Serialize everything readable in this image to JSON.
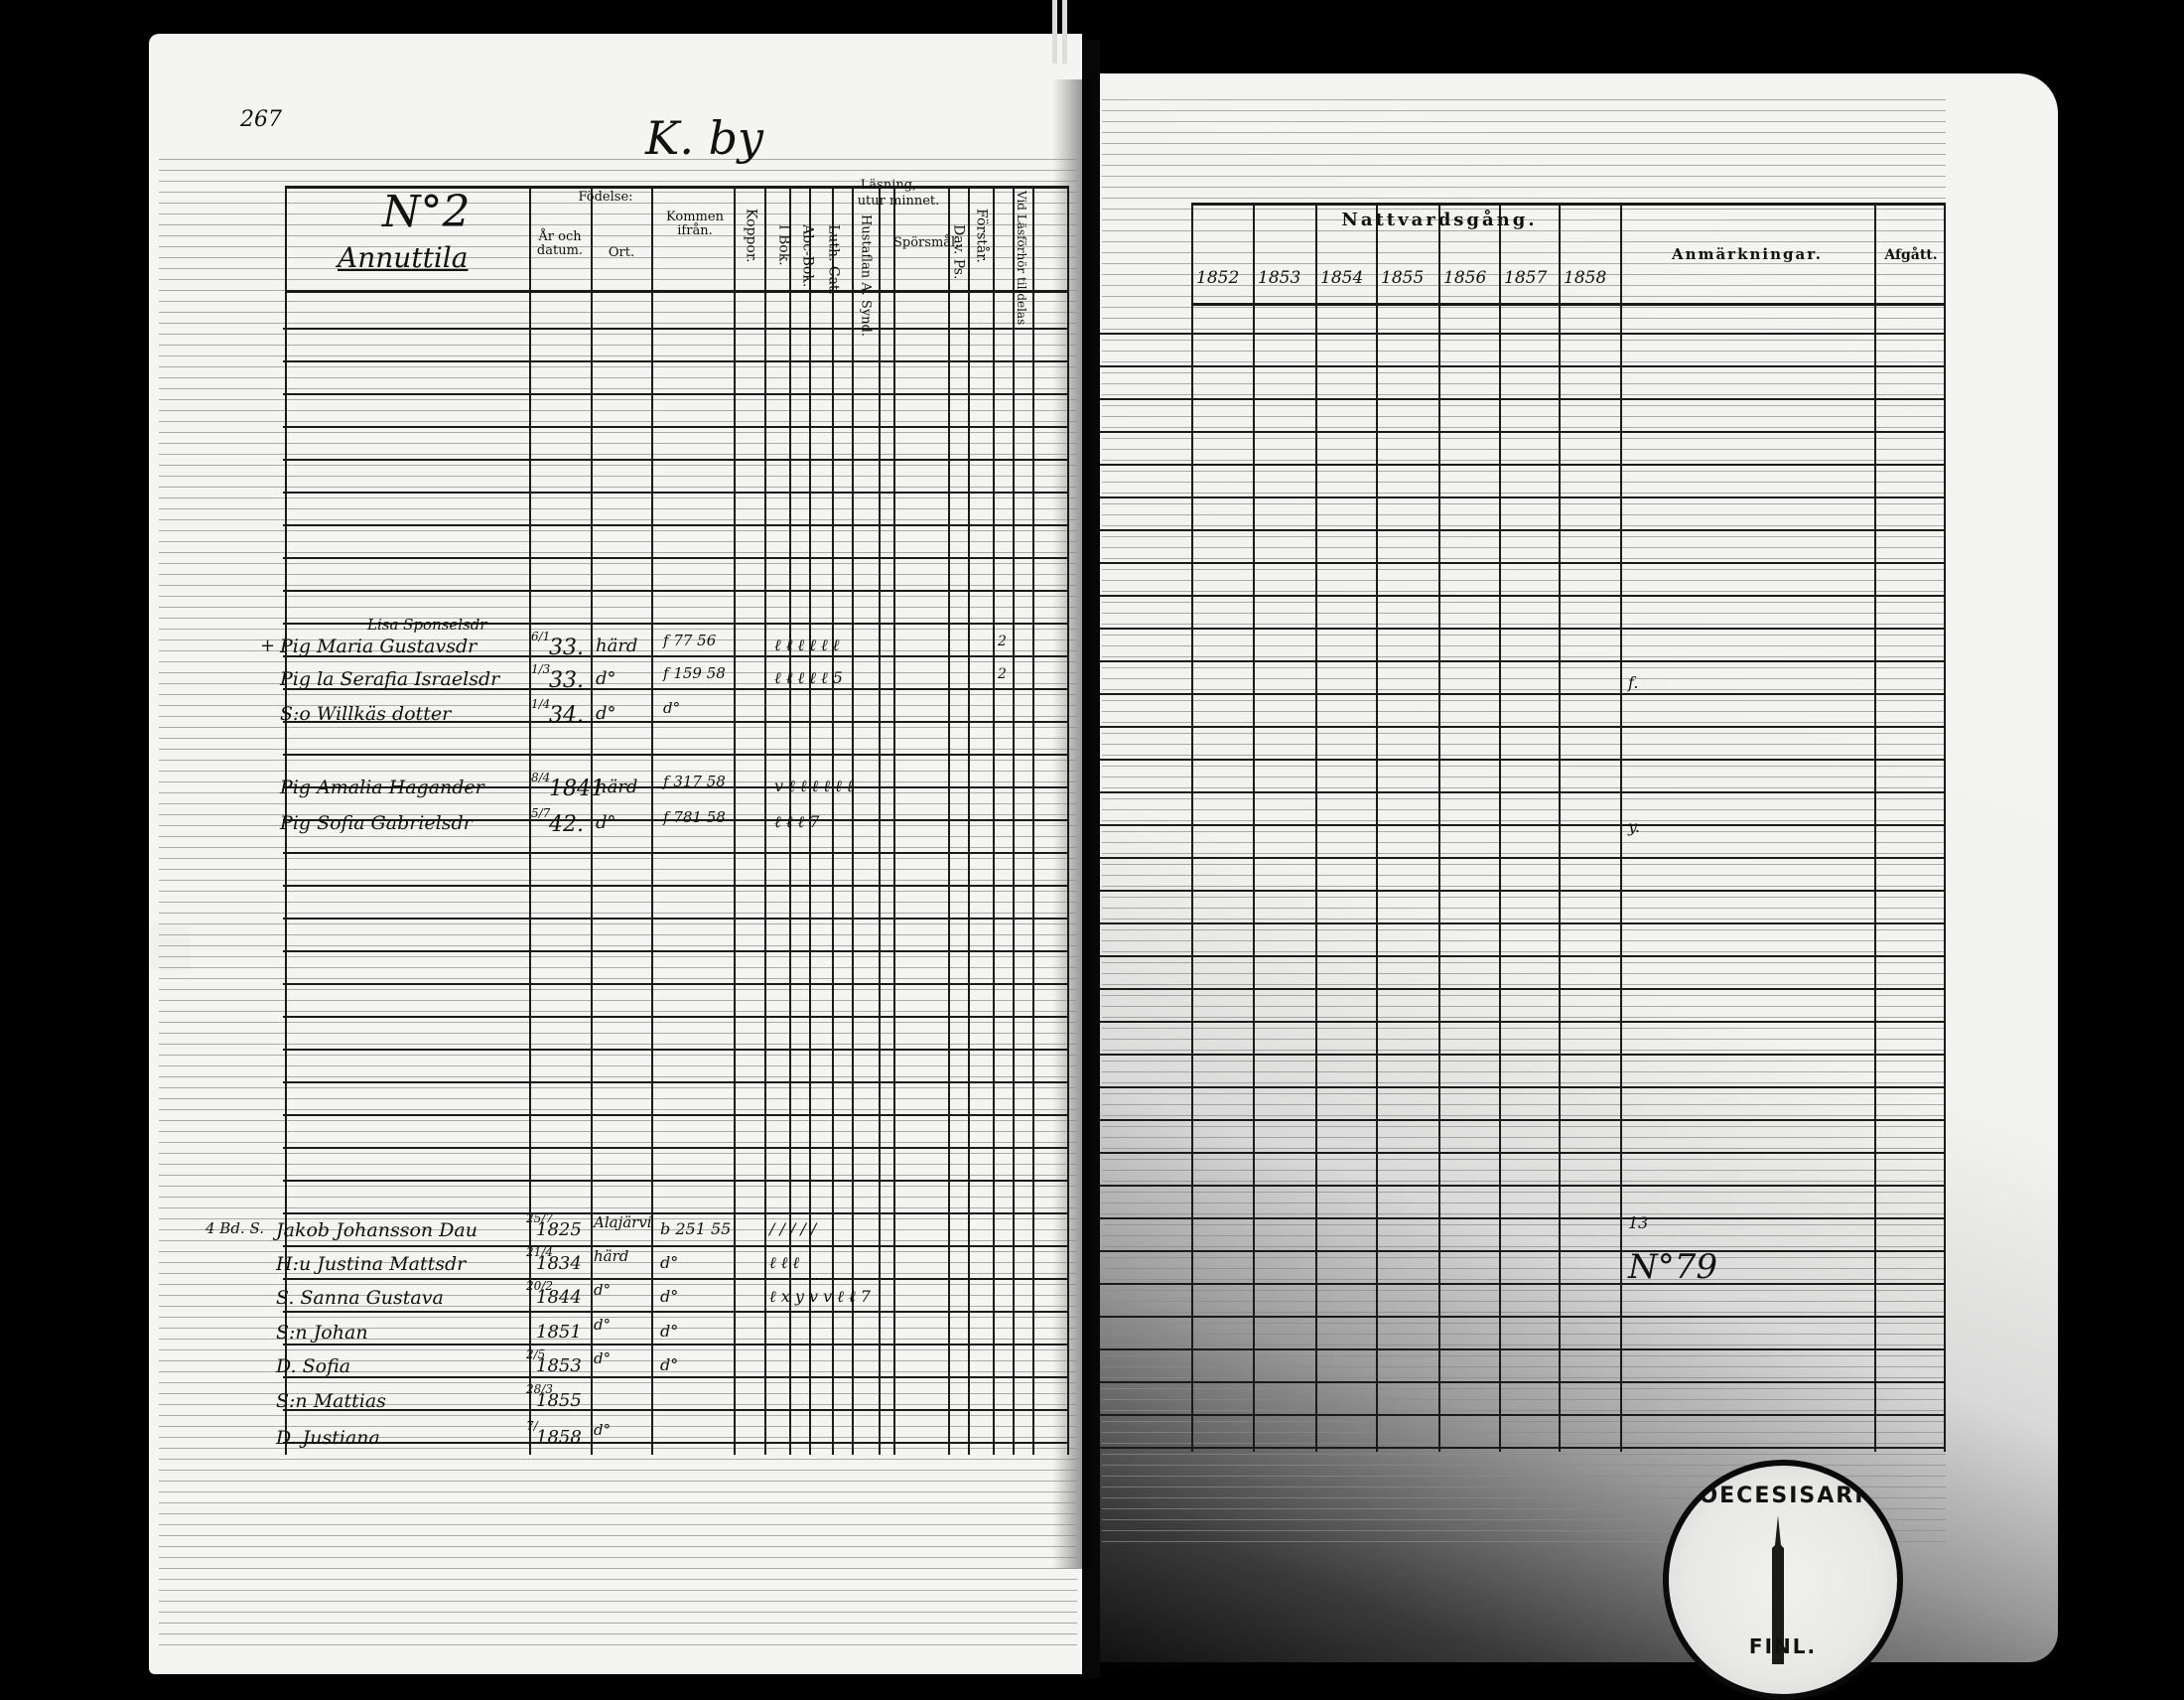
{
  "page_number": "267",
  "village": "K. by",
  "section_no": "N°2",
  "farm_name": "Annuttila",
  "header": {
    "fodelse": "Födelse:",
    "ar_och_datum": "År och datum.",
    "ort": "Ort.",
    "kommen_ifran": "Kommen ifrån.",
    "koppor": "Koppor.",
    "lasning": "Läsning,",
    "utur_minnet": "utur minnet.",
    "i_bok": "I Bok.",
    "abc_bok": "Abc-Bok.",
    "luth_cat": "Luth. Cat.",
    "hustaflan": "Hustaflan A. Synd.",
    "sporsmal": "Spörsmål.",
    "dav_ps": "Dav. Ps.",
    "forstar": "Förstår.",
    "vid_lastofoer": "Vid Läsförhör tilldelas",
    "nattvardsgang": "Nattvardsgång.",
    "years": [
      "1852",
      "1853",
      "1854",
      "1855",
      "1856",
      "1857",
      "1858"
    ],
    "anmarkningar": "Anmärkningar.",
    "afgatt": "Afgått."
  },
  "entries_top": [
    {
      "prefix": "+",
      "name": "Pig Maria Gustavsdr",
      "above": "Lisa Sponselsdr",
      "year": "33.",
      "month": "6/1",
      "place": "härd",
      "from": "f 77 56",
      "marks": "ℓ ℓ ℓ ℓ ℓ ℓ",
      "right": "2"
    },
    {
      "prefix": "",
      "name": "Pig la Serafia Israelsdr",
      "above": "",
      "year": "33.",
      "month": "1/3",
      "place": "d°",
      "from": "f 159 58",
      "marks": "ℓ ℓ ℓ ℓ ℓ 5",
      "right": "2",
      "note": "f."
    },
    {
      "prefix": "",
      "name": "S:o Willkäs dotter",
      "above": "",
      "year": "34.",
      "month": "1/4",
      "place": "d°",
      "from": "d°",
      "marks": "",
      "right": ""
    },
    {
      "prefix": "",
      "name": "Pig Amalia Hagander",
      "above": "",
      "year": "1841",
      "month": "8/4",
      "place": "härd",
      "from": "f 317 58",
      "marks": "v ℓ ℓ ℓ ℓ ℓ ℓ",
      "right": ""
    },
    {
      "prefix": "",
      "name": "Pig Sofia Gabrielsdr",
      "above": "",
      "year": "42.",
      "month": "5/7",
      "place": "d°",
      "from": "f 781 58",
      "marks": "ℓ ℓ ℓ 7",
      "right": "",
      "note": "y."
    }
  ],
  "entries_bottom": [
    {
      "prefix": "4 Bd. S.",
      "name": "Jakob Johansson Dau",
      "year": "1825",
      "month": "25/7",
      "place": "Alajärvi",
      "from": "b 251 55",
      "marks": "/ / / / /",
      "note": "13"
    },
    {
      "prefix": "",
      "name": "H:u Justina Mattsdr",
      "year": "1834",
      "month": "21/4",
      "place": "härd",
      "from": "d°",
      "marks": "ℓ ℓ ℓ",
      "note": "N°79"
    },
    {
      "prefix": "",
      "name": "S. Sanna Gustava",
      "year": "1844",
      "month": "20/2",
      "place": "d°",
      "from": "d°",
      "marks": "ℓ x y v v ℓ ℓ 7"
    },
    {
      "prefix": "",
      "name": "S:n Johan",
      "year": "1851",
      "month": "",
      "place": "d°",
      "from": "d°",
      "marks": ""
    },
    {
      "prefix": "",
      "name": "D. Sofia",
      "year": "1853",
      "month": "2/5",
      "place": "d°",
      "from": "d°",
      "marks": ""
    },
    {
      "prefix": "",
      "name": "S:n Mattias",
      "year": "1855",
      "month": "28/3",
      "place": "",
      "from": "",
      "marks": ""
    },
    {
      "prefix": "",
      "name": "D. Justiana",
      "year": "1858",
      "month": "7/",
      "place": "d°",
      "from": "",
      "marks": ""
    }
  ],
  "stamp": {
    "text": "DIOECESISARKIV",
    "side": "FINL."
  }
}
